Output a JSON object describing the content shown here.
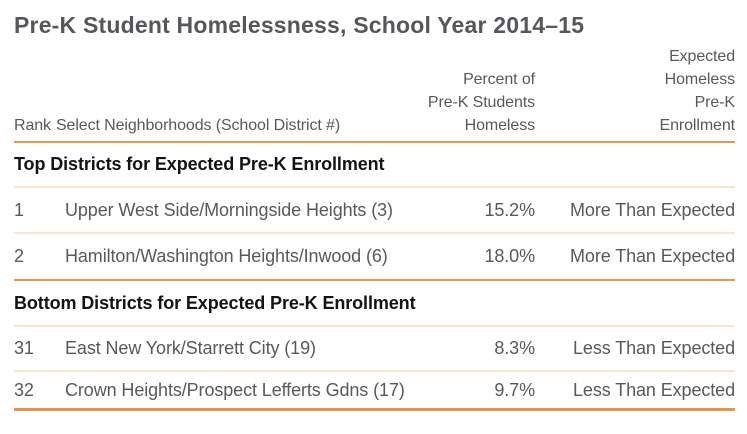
{
  "title": "Pre-K Student Homelessness, School Year 2014–15",
  "colors": {
    "rule_strong": "#ef9549",
    "rule_light": "#fae4ca",
    "rule_bottom": "#ef9143",
    "title_text": "#56575a",
    "body_text": "#58595c",
    "section_text": "#131313",
    "background": "#ffffff"
  },
  "chart_data": {
    "type": "table",
    "title": "Pre-K Student Homelessness, School Year 2014–15",
    "header": {
      "rank": "Rank",
      "neighborhoods": "Select Neighborhoods (School District #)",
      "percent_lines": [
        "Percent of",
        "Pre-K Students",
        "Homeless"
      ],
      "expected_lines": [
        "Expected",
        "Homeless",
        "Pre-K",
        "Enrollment"
      ]
    },
    "columns": [
      "Rank",
      "Select Neighborhoods (School District #)",
      "Percent of Pre-K Students Homeless",
      "Expected Homeless Pre-K Enrollment"
    ],
    "sections": [
      {
        "header": "Top Districts for Expected Pre-K Enrollment",
        "rows": [
          {
            "rank": "1",
            "neighborhood": "Upper West Side/Morningside Heights (3)",
            "percent": "15.2%",
            "expected": "More Than Expected"
          },
          {
            "rank": "2",
            "neighborhood": "Hamilton/Washington Heights/Inwood (6)",
            "percent": "18.0%",
            "expected": "More Than Expected"
          }
        ]
      },
      {
        "header": "Bottom Districts for Expected Pre-K Enrollment",
        "rows": [
          {
            "rank": "31",
            "neighborhood": "East New York/Starrett City (19)",
            "percent": "8.3%",
            "expected": "Less Than Expected"
          },
          {
            "rank": "32",
            "neighborhood": "Crown Heights/Prospect Lefferts Gdns (17)",
            "percent": "9.7%",
            "expected": "Less Than Expected"
          }
        ]
      }
    ]
  }
}
